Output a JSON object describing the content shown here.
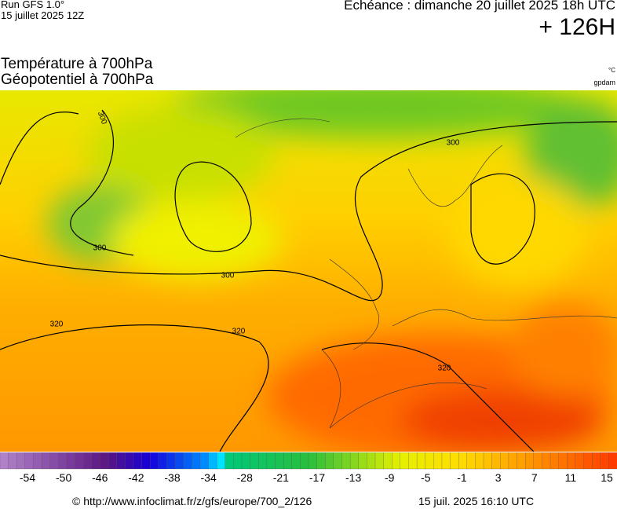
{
  "header": {
    "run": "Run GFS 1.0°",
    "run_date": "15 juillet 2025 12Z",
    "echeance": "Echéance : dimanche 20 juillet 2025 18h UTC",
    "lead": "+ 126H"
  },
  "titles": [
    "Température à 700hPa",
    "Géopotentiel à 700hPa"
  ],
  "units": [
    "°C",
    "gpdam"
  ],
  "map": {
    "contour_labels": [
      "300",
      "300",
      "300",
      "300",
      "320",
      "320",
      "320"
    ]
  },
  "legend": {
    "ticks": [
      -54,
      -50,
      -46,
      -42,
      -38,
      -34,
      -28,
      -21,
      -17,
      -13,
      -9,
      -5,
      -1,
      3,
      7,
      11,
      15
    ]
  },
  "footer": {
    "url": "© http://www.infoclimat.fr/z/gfs/europe/700_2/126",
    "timestamp": "15 juil. 2025 16:10 UTC"
  }
}
